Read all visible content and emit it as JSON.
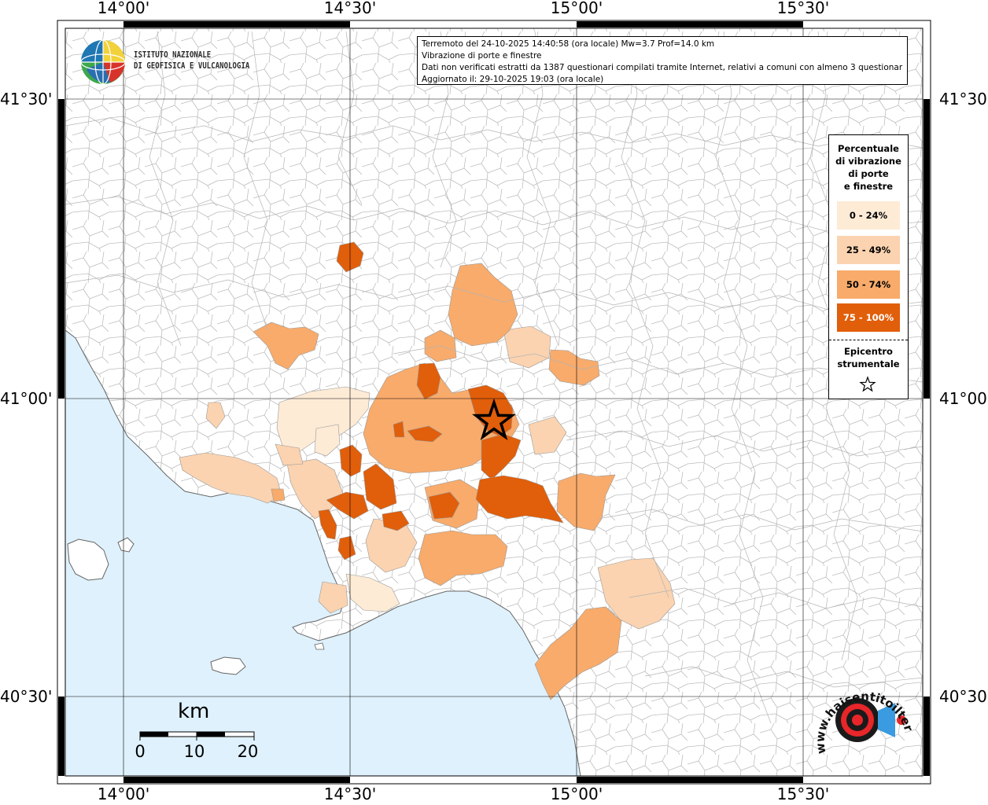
{
  "map": {
    "lon_labels": [
      "14°00'",
      "14°30'",
      "15°00'",
      "15°30'"
    ],
    "lat_labels": [
      "41°30'",
      "41°00'",
      "40°30'"
    ],
    "sea_color": "#dff1fc",
    "land_color": "#ffffff",
    "border_color": "#a0a0a0"
  },
  "logo_ingv": {
    "line1": "ISTITUTO NAZIONALE",
    "line2": "DI GEOFISICA E VULCANOLOGIA"
  },
  "info": {
    "line1": "Terremoto del 24-10-2025 14:40:58 (ora locale) Mw=3.7 Prof=14.0 km",
    "line2": "Vibrazione di porte e finestre",
    "line3": "Dati non verificati estratti da 1387 questionari compilati tramite Internet, relativi a comuni con almeno 3 questionari.",
    "line4": "Aggiornato il: 29-10-2025 19:03 (ora locale)"
  },
  "legend": {
    "title_lines": [
      "Percentuale",
      "di vibrazione",
      "di porte",
      "e finestre"
    ],
    "classes": [
      {
        "label": "0 - 24%",
        "color": "#fdebd6"
      },
      {
        "label": "25 - 49%",
        "color": "#fbd3b0"
      },
      {
        "label": "50 - 74%",
        "color": "#f8ab6b"
      },
      {
        "label": "75 - 100%",
        "color": "#e15e0a"
      }
    ],
    "epicenter_lines": [
      "Epicentro",
      "strumentale"
    ],
    "epicenter_icon": "star-icon"
  },
  "scale": {
    "unit": "km",
    "ticks": [
      "0",
      "10",
      "20"
    ]
  },
  "logo_hst": {
    "text": "www.haisentitoilterremoto.it"
  }
}
